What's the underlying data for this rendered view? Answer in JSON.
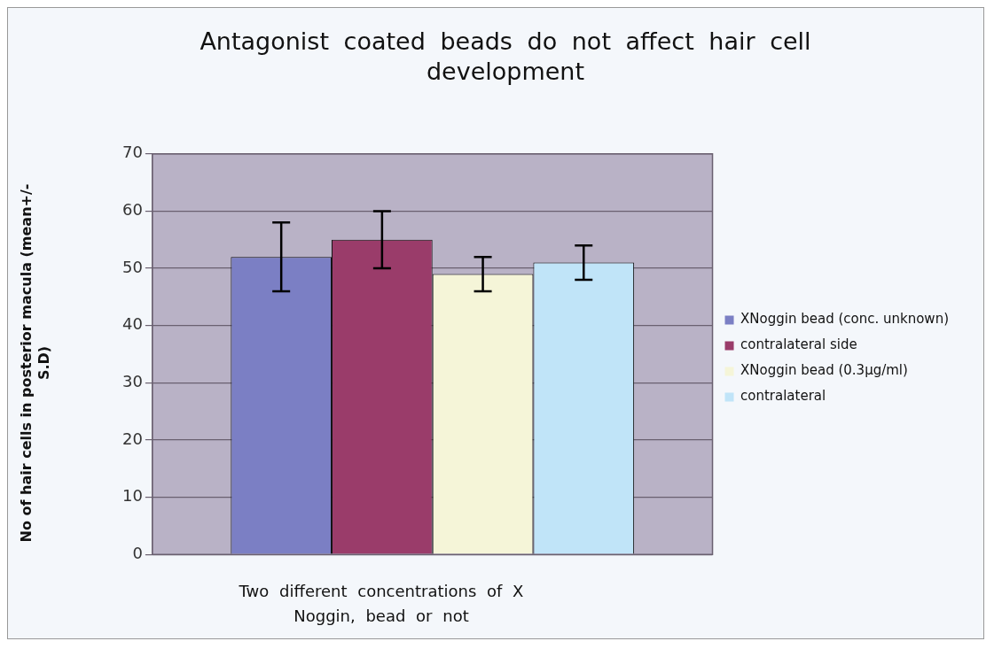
{
  "chart_data": {
    "type": "bar",
    "title": "Antagonist coated beads do not affect hair cell development",
    "xlabel": "Two different concentrations of X Noggin, bead or not",
    "ylabel": "No of hair cells in posterior macula (mean+/-S.D)",
    "categories": [
      null
    ],
    "series": [
      {
        "name": "XNoggin bead (conc. unknown)",
        "color": "#7b7fc4",
        "values": [
          52
        ],
        "errors": [
          6
        ]
      },
      {
        "name": "contralateral side",
        "color": "#9a3c6a",
        "values": [
          55
        ],
        "errors": [
          5
        ]
      },
      {
        "name": "XNoggin bead (0.3μg/ml)",
        "color": "#f5f5d8",
        "values": [
          49
        ],
        "errors": [
          3
        ]
      },
      {
        "name": "contralateral",
        "color": "#c0e4f8",
        "values": [
          51
        ],
        "errors": [
          3
        ]
      }
    ],
    "ylim": [
      0,
      70
    ],
    "yticks": [
      0,
      10,
      20,
      30,
      40,
      50,
      60,
      70
    ],
    "grid": "y",
    "legend": "right"
  }
}
